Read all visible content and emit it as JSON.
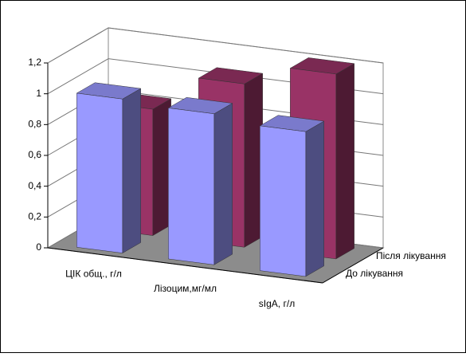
{
  "chart_data": {
    "type": "bar3d",
    "categories": [
      "ЦІК общ., г/л",
      "Лізоцим,мг/мл",
      "sIgA, г/л"
    ],
    "series": [
      {
        "name": "До лікування",
        "color": "#9999ff",
        "values": [
          1.0,
          0.98,
          0.94
        ]
      },
      {
        "name": "Після лікування",
        "color": "#993366",
        "values": [
          0.82,
          1.06,
          1.2
        ]
      }
    ],
    "ylim": [
      0,
      1.2
    ],
    "yticks": [
      0,
      {
        "value": 0.2,
        "label": "0,2"
      },
      {
        "value": 0.4,
        "label": "0,4"
      },
      {
        "value": 0.6,
        "label": "0,6"
      },
      {
        "value": 0.8,
        "label": "0,8"
      },
      1,
      {
        "value": 1.2,
        "label": "1,2"
      }
    ],
    "grid": true
  }
}
